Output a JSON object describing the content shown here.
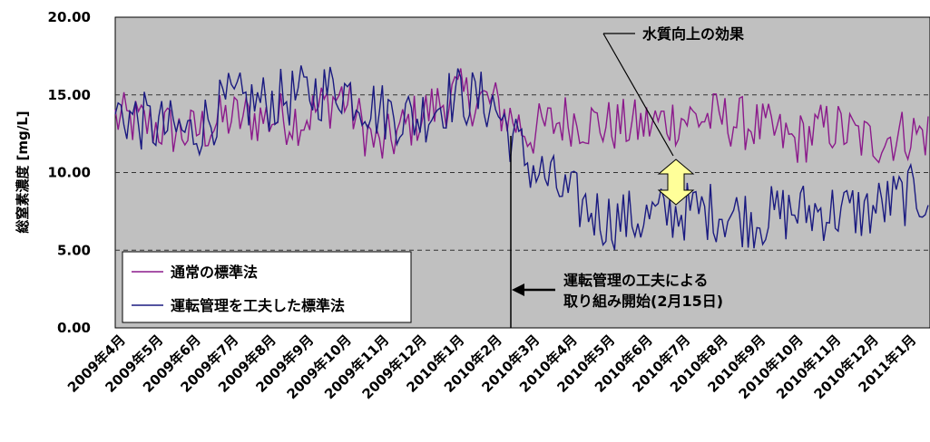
{
  "chart_data": {
    "type": "line",
    "title": "",
    "xlabel": "",
    "ylabel": "総窒素濃度 [mg/L]",
    "ylim": [
      0,
      20
    ],
    "yticks": [
      "0.00",
      "5.00",
      "10.00",
      "15.00",
      "20.00"
    ],
    "grid": "horizontal-dashed",
    "legend_position": "bottom-left",
    "categories": [
      "2009年4月",
      "2009年5月",
      "2009年6月",
      "2009年7月",
      "2009年8月",
      "2009年9月",
      "2009年10月",
      "2009年11月",
      "2009年12月",
      "2010年1月",
      "2010年2月",
      "2010年3月",
      "2010年4月",
      "2010年5月",
      "2010年6月",
      "2010年7月",
      "2010年8月",
      "2010年9月",
      "2010年10月",
      "2010年11月",
      "2010年12月",
      "2011年1月"
    ],
    "series": [
      {
        "name": "通常の標準法",
        "color": "#8b1a8b",
        "monthly_values": [
          13.5,
          13.0,
          12.5,
          13.5,
          13.5,
          13.5,
          15.0,
          11.5,
          13.5,
          15.0,
          14.5,
          12.5,
          13.5,
          13.0,
          13.0,
          13.5,
          13.5,
          13.0,
          12.0,
          13.0,
          12.0,
          12.5
        ]
      },
      {
        "name": "運転管理を工夫した標準法",
        "color": "#1a1a80",
        "monthly_values": [
          14.0,
          13.0,
          12.5,
          14.5,
          14.5,
          15.0,
          15.5,
          14.0,
          13.5,
          15.0,
          14.5,
          10.5,
          8.5,
          7.0,
          7.0,
          7.5,
          7.5,
          7.0,
          7.5,
          7.5,
          7.5,
          8.5
        ]
      }
    ],
    "annotations": [
      {
        "text": "水質向上の効果",
        "type": "callout"
      },
      {
        "text_line1": "運転管理の工夫による",
        "text_line2": "取り組み開始(2月15日)",
        "type": "arrow-to-vline",
        "at_month_index": 10.5
      }
    ]
  },
  "colors": {
    "plot_bg": "#c0c0c0",
    "arrow_fill": "#ffff99"
  }
}
